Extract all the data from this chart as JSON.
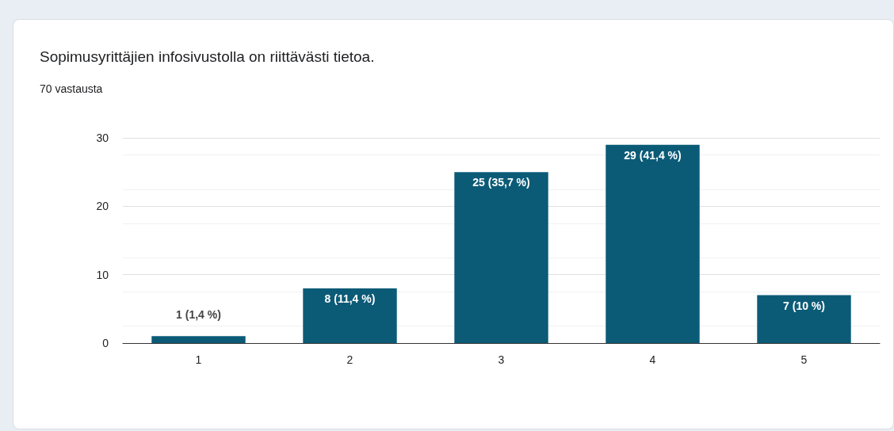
{
  "chart_data": {
    "type": "bar",
    "title": "Sopimusyrittäjien infosivustolla on riittävästi tietoa.",
    "subtitle": "70 vastausta",
    "categories": [
      "1",
      "2",
      "3",
      "4",
      "5"
    ],
    "values": [
      1,
      8,
      25,
      29,
      7
    ],
    "value_labels": [
      "1 (1,4 %)",
      "8 (11,4 %)",
      "25 (35,7 %)",
      "29 (41,4 %)",
      "7 (10 %)"
    ],
    "color": "#0b5b77",
    "ylim": [
      0,
      30
    ],
    "yticks": [
      0,
      10,
      20,
      30
    ],
    "grid": "y"
  }
}
